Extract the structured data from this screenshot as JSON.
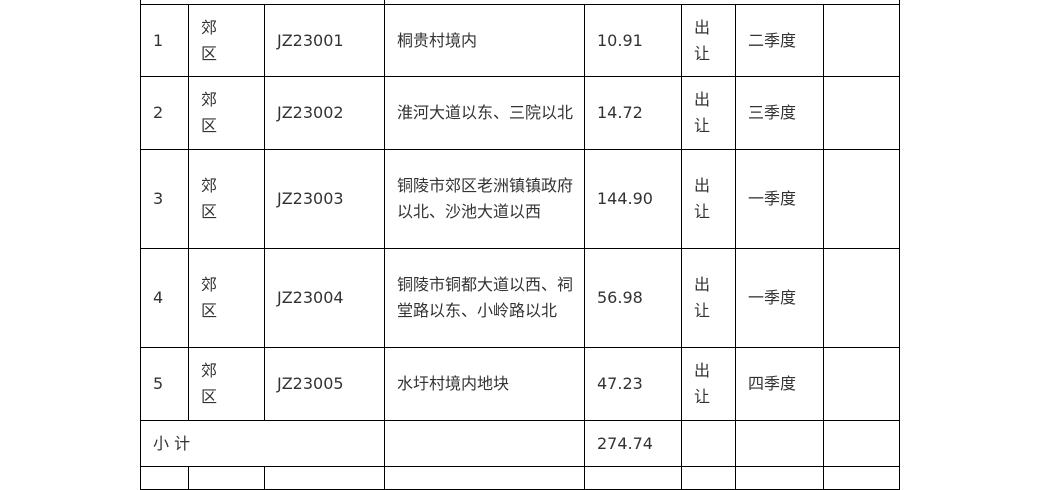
{
  "rows": [
    {
      "no": "1",
      "district": "郊区",
      "code": "JZ23001",
      "location": "桐贵村境内",
      "area": "10.91",
      "method": "出让",
      "quarter": "二季度",
      "note": ""
    },
    {
      "no": "2",
      "district": "郊区",
      "code": "JZ23002",
      "location": "淮河大道以东、三院以北",
      "area": "14.72",
      "method": "出让",
      "quarter": "三季度",
      "note": ""
    },
    {
      "no": "3",
      "district": "郊区",
      "code": "JZ23003",
      "location": "铜陵市郊区老洲镇镇政府以北、沙池大道以西",
      "area": "144.90",
      "method": "出让",
      "quarter": "一季度",
      "note": ""
    },
    {
      "no": "4",
      "district": "郊区",
      "code": "JZ23004",
      "location": "铜陵市铜都大道以西、祠堂路以东、小岭路以北",
      "area": "56.98",
      "method": "出让",
      "quarter": "一季度",
      "note": ""
    },
    {
      "no": "5",
      "district": "郊区",
      "code": "JZ23005",
      "location": "水圩村境内地块",
      "area": "47.23",
      "method": "出让",
      "quarter": "四季度",
      "note": ""
    }
  ],
  "subtotal": {
    "label": "小 计",
    "area": "274.74"
  }
}
